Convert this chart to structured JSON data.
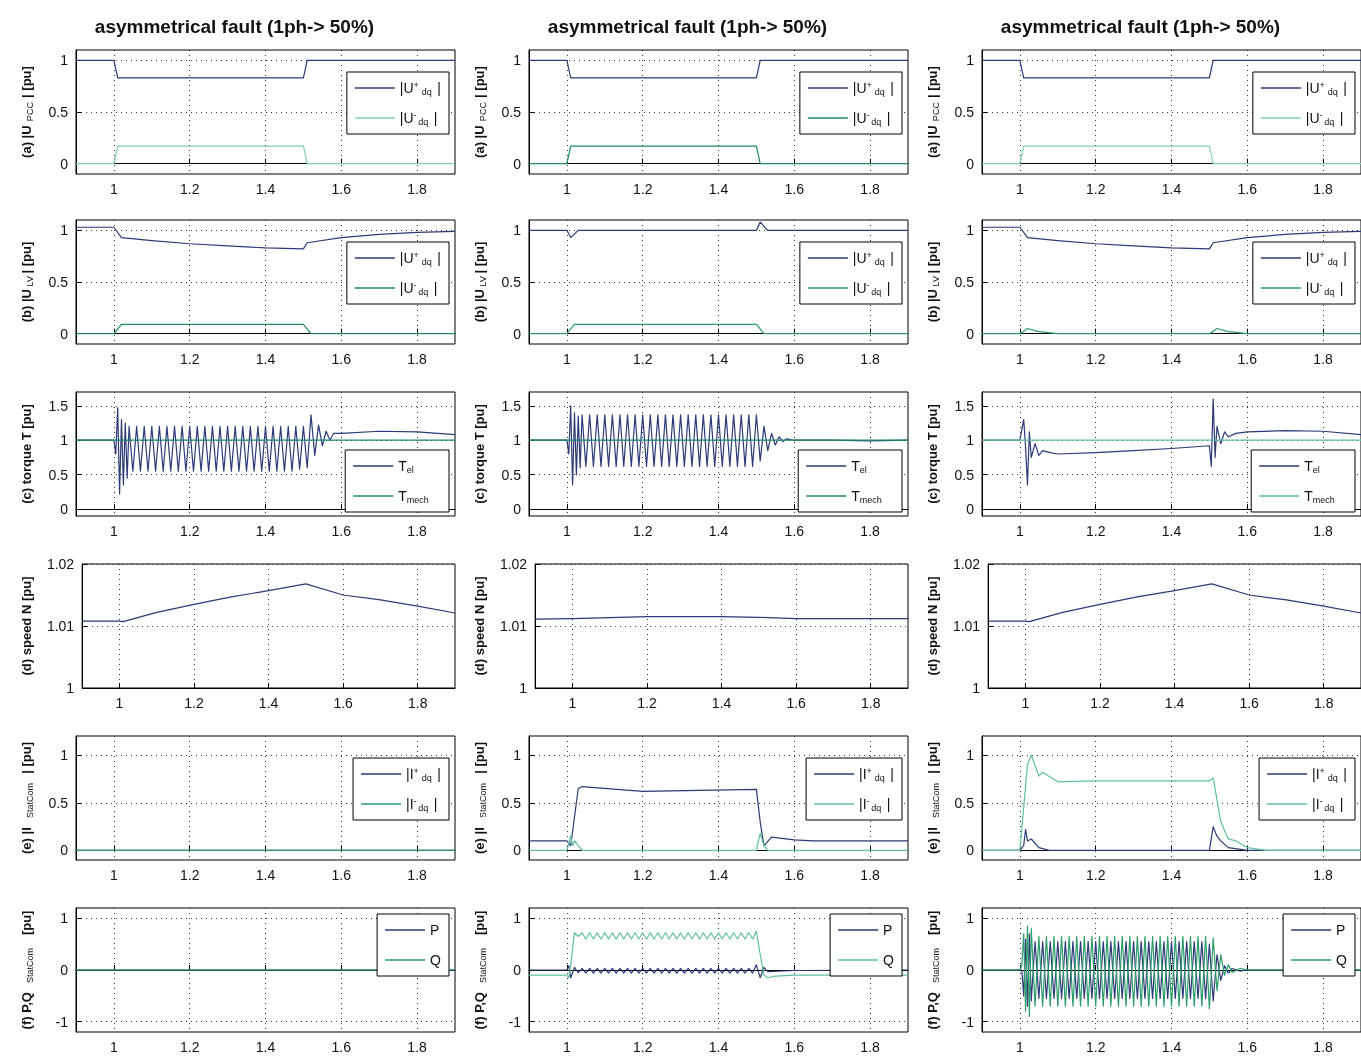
{
  "chart_data": [
    {
      "type": "line",
      "title": "asymmetrical fault (1ph-> 50%)",
      "ylabel": "(a) |U$_{PCC}$| [pu]",
      "xlim": [
        0.9,
        1.9
      ],
      "xticks": [
        1,
        1.2,
        1.4,
        1.6,
        1.8
      ],
      "ylim": [
        -0.1,
        1.1
      ],
      "yticks": [
        0,
        0.5,
        1
      ],
      "grid": true,
      "legend": "right",
      "series": [
        {
          "name": "|U$^{+}$$_{dq}$|",
          "color": "#2c3a78",
          "x": [
            0.9,
            1,
            1.01,
            1.5,
            1.51,
            1.9
          ],
          "values": [
            1,
            1,
            0.83,
            0.83,
            1,
            1
          ]
        },
        {
          "name": "|U$^{-}$$_{dq}$|",
          "color": "#7ed0b4",
          "x": [
            0.9,
            1,
            1.01,
            1.5,
            1.51,
            1.9
          ],
          "values": [
            0,
            0,
            0.17,
            0.17,
            0,
            0
          ]
        }
      ]
    },
    {
      "type": "line",
      "title": "asymmetrical fault (1ph-> 50%)",
      "ylabel": "(a) |U$_{PCC}$| [pu]",
      "xlim": [
        0.9,
        1.9
      ],
      "xticks": [
        1,
        1.2,
        1.4,
        1.6,
        1.8
      ],
      "ylim": [
        -0.1,
        1.1
      ],
      "yticks": [
        0,
        0.5,
        1
      ],
      "grid": true,
      "legend": "right",
      "series": [
        {
          "name": "|U$^{+}$$_{dq}$|",
          "color": "#2c3a78",
          "x": [
            0.9,
            1,
            1.01,
            1.5,
            1.51,
            1.9
          ],
          "values": [
            1,
            1,
            0.83,
            0.83,
            1,
            1
          ]
        },
        {
          "name": "|U$^{-}$$_{dq}$|",
          "color": "#1f8a6a",
          "x": [
            0.9,
            1,
            1.01,
            1.5,
            1.51,
            1.9
          ],
          "values": [
            0,
            0,
            0.17,
            0.17,
            0,
            0
          ]
        }
      ]
    },
    {
      "type": "line",
      "title": "asymmetrical fault (1ph-> 50%)",
      "ylabel": "(a) |U$_{PCC}$| [pu]",
      "xlim": [
        0.9,
        1.9
      ],
      "xticks": [
        1,
        1.2,
        1.4,
        1.6,
        1.8
      ],
      "ylim": [
        -0.1,
        1.1
      ],
      "yticks": [
        0,
        0.5,
        1
      ],
      "grid": true,
      "legend": "right",
      "series": [
        {
          "name": "|U$^{+}$$_{dq}$|",
          "color": "#2c3a78",
          "x": [
            0.9,
            1,
            1.01,
            1.5,
            1.51,
            1.9
          ],
          "values": [
            1,
            1,
            0.83,
            0.83,
            1,
            1
          ]
        },
        {
          "name": "|U$^{-}$$_{dq}$|",
          "color": "#7ed0b4",
          "x": [
            0.9,
            1,
            1.01,
            1.5,
            1.51,
            1.9
          ],
          "values": [
            0,
            0,
            0.17,
            0.17,
            0,
            0
          ]
        }
      ]
    },
    {
      "type": "line",
      "ylabel": "(b) |U$_{LV}$| [pu]",
      "xlim": [
        0.9,
        1.9
      ],
      "xticks": [
        1,
        1.2,
        1.4,
        1.6,
        1.8
      ],
      "ylim": [
        -0.1,
        1.1
      ],
      "yticks": [
        0,
        0.5,
        1
      ],
      "grid": true,
      "legend": "right",
      "series": [
        {
          "name": "|U$^{+}$$_{dq}$|",
          "color": "#2c3a78",
          "x": [
            0.9,
            1,
            1.02,
            1.1,
            1.2,
            1.3,
            1.4,
            1.5,
            1.51,
            1.6,
            1.7,
            1.8,
            1.9
          ],
          "values": [
            1.03,
            1.03,
            0.93,
            0.9,
            0.87,
            0.85,
            0.83,
            0.82,
            0.88,
            0.93,
            0.96,
            0.98,
            0.99
          ]
        },
        {
          "name": "|U$^{-}$$_{dq}$|",
          "color": "#1f8a6a",
          "x": [
            0.9,
            1,
            1.02,
            1.5,
            1.52,
            1.9
          ],
          "values": [
            0,
            0,
            0.09,
            0.09,
            0,
            0
          ]
        }
      ]
    },
    {
      "type": "line",
      "ylabel": "(b) |U$_{LV}$| [pu]",
      "xlim": [
        0.9,
        1.9
      ],
      "xticks": [
        1,
        1.2,
        1.4,
        1.6,
        1.8
      ],
      "ylim": [
        -0.1,
        1.1
      ],
      "yticks": [
        0,
        0.5,
        1
      ],
      "grid": true,
      "legend": "right",
      "series": [
        {
          "name": "|U$^{+}$$_{dq}$|",
          "color": "#2c3a78",
          "x": [
            0.9,
            1,
            1.01,
            1.03,
            1.5,
            1.51,
            1.53,
            1.9
          ],
          "values": [
            1,
            1,
            0.93,
            1,
            1,
            1.08,
            1,
            1
          ]
        },
        {
          "name": "|U$^{-}$$_{dq}$|",
          "color": "#2a9d6a",
          "x": [
            0.9,
            1,
            1.02,
            1.5,
            1.52,
            1.9
          ],
          "values": [
            0,
            0,
            0.09,
            0.09,
            0,
            0
          ]
        }
      ]
    },
    {
      "type": "line",
      "ylabel": "(b) |U$_{LV}$| [pu]",
      "xlim": [
        0.9,
        1.9
      ],
      "xticks": [
        1,
        1.2,
        1.4,
        1.6,
        1.8
      ],
      "ylim": [
        -0.1,
        1.1
      ],
      "yticks": [
        0,
        0.5,
        1
      ],
      "grid": true,
      "legend": "right",
      "series": [
        {
          "name": "|U$^{+}$$_{dq}$|",
          "color": "#2c3a78",
          "x": [
            0.9,
            1,
            1.02,
            1.1,
            1.2,
            1.3,
            1.4,
            1.5,
            1.51,
            1.6,
            1.7,
            1.8,
            1.9
          ],
          "values": [
            1.03,
            1.03,
            0.93,
            0.9,
            0.87,
            0.85,
            0.83,
            0.82,
            0.88,
            0.93,
            0.96,
            0.98,
            0.99
          ]
        },
        {
          "name": "|U$^{-}$$_{dq}$|",
          "color": "#2a9d6a",
          "x": [
            0.9,
            1,
            1.02,
            1.05,
            1.1,
            1.5,
            1.52,
            1.55,
            1.6,
            1.9
          ],
          "values": [
            0,
            0,
            0.05,
            0.02,
            0,
            0,
            0.05,
            0.02,
            0,
            0
          ]
        }
      ]
    },
    {
      "type": "line",
      "ylabel": "(c) torque T [pu]",
      "xlim": [
        0.9,
        1.9
      ],
      "xticks": [
        1,
        1.2,
        1.4,
        1.6,
        1.8
      ],
      "ylim": [
        -0.1,
        1.7
      ],
      "yticks": [
        0,
        0.5,
        1,
        1.5
      ],
      "grid": true,
      "legend": "bottom right",
      "series": [
        {
          "name": "T$_{el}$",
          "color": "#2c3a78",
          "x": [
            0.9,
            1,
            1.005,
            1.01,
            1.015,
            1.02,
            1.025,
            1.03,
            1.035,
            1.04,
            1.05,
            1.06,
            1.07,
            1.08,
            1.09,
            1.1,
            1.11,
            1.12,
            1.13,
            1.14,
            1.15,
            1.16,
            1.17,
            1.18,
            1.19,
            1.2,
            1.21,
            1.22,
            1.23,
            1.24,
            1.25,
            1.26,
            1.27,
            1.28,
            1.29,
            1.3,
            1.31,
            1.32,
            1.33,
            1.34,
            1.35,
            1.36,
            1.37,
            1.38,
            1.39,
            1.4,
            1.41,
            1.42,
            1.43,
            1.44,
            1.45,
            1.46,
            1.47,
            1.48,
            1.49,
            1.5,
            1.51,
            1.52,
            1.53,
            1.54,
            1.55,
            1.56,
            1.57,
            1.58,
            1.6,
            1.7,
            1.8,
            1.9
          ],
          "values": [
            1,
            1,
            0.8,
            1.47,
            0.22,
            1.3,
            0.35,
            1.25,
            0.45,
            1.2,
            0.55,
            1.2,
            0.55,
            1.2,
            0.55,
            1.2,
            0.55,
            1.2,
            0.55,
            1.2,
            0.55,
            1.2,
            0.55,
            1.2,
            0.55,
            1.2,
            0.55,
            1.2,
            0.55,
            1.2,
            0.55,
            1.2,
            0.55,
            1.2,
            0.55,
            1.2,
            0.55,
            1.2,
            0.55,
            1.2,
            0.55,
            1.2,
            0.55,
            1.2,
            0.55,
            1.2,
            0.55,
            1.2,
            0.55,
            1.2,
            0.55,
            1.2,
            0.55,
            1.2,
            0.58,
            1.2,
            0.6,
            1.37,
            0.78,
            1.22,
            0.92,
            1.13,
            1,
            1.1,
            1.1,
            1.13,
            1.12,
            1.08
          ]
        },
        {
          "name": "T$_{mech}$",
          "color": "#1f8a6a",
          "x": [
            0.9,
            1.9
          ],
          "values": [
            1,
            1
          ]
        }
      ]
    },
    {
      "type": "line",
      "ylabel": "(c) torque T [pu]",
      "xlim": [
        0.9,
        1.9
      ],
      "xticks": [
        1,
        1.2,
        1.4,
        1.6,
        1.8
      ],
      "ylim": [
        -0.1,
        1.7
      ],
      "yticks": [
        0,
        0.5,
        1,
        1.5
      ],
      "grid": true,
      "legend": "bottom right",
      "series": [
        {
          "name": "T$_{el}$",
          "color": "#2c3a78",
          "x": [
            0.9,
            1,
            1.005,
            1.01,
            1.015,
            1.02,
            1.025,
            1.03,
            1.035,
            1.04,
            1.05,
            1.06,
            1.07,
            1.08,
            1.09,
            1.1,
            1.11,
            1.12,
            1.13,
            1.14,
            1.15,
            1.16,
            1.17,
            1.18,
            1.19,
            1.2,
            1.21,
            1.22,
            1.23,
            1.24,
            1.25,
            1.26,
            1.27,
            1.28,
            1.29,
            1.3,
            1.31,
            1.32,
            1.33,
            1.34,
            1.35,
            1.36,
            1.37,
            1.38,
            1.39,
            1.4,
            1.41,
            1.42,
            1.43,
            1.44,
            1.45,
            1.46,
            1.47,
            1.48,
            1.49,
            1.5,
            1.51,
            1.52,
            1.53,
            1.54,
            1.55,
            1.56,
            1.57,
            1.58,
            1.6,
            1.7,
            1.8,
            1.9
          ],
          "values": [
            1,
            1,
            0.8,
            1.5,
            0.35,
            1.4,
            0.5,
            1.35,
            0.6,
            1.37,
            0.62,
            1.37,
            0.62,
            1.37,
            0.62,
            1.37,
            0.62,
            1.37,
            0.62,
            1.37,
            0.62,
            1.37,
            0.62,
            1.37,
            0.62,
            1.37,
            0.62,
            1.37,
            0.62,
            1.37,
            0.62,
            1.37,
            0.62,
            1.37,
            0.62,
            1.37,
            0.62,
            1.37,
            0.62,
            1.37,
            0.62,
            1.37,
            0.62,
            1.37,
            0.62,
            1.37,
            0.62,
            1.37,
            0.62,
            1.37,
            0.62,
            1.37,
            0.62,
            1.37,
            0.62,
            1.37,
            0.7,
            1.2,
            0.85,
            1.1,
            0.93,
            1.05,
            0.98,
            1.02,
            1,
            1,
            0.99,
            1
          ]
        },
        {
          "name": "T$_{mech}$",
          "color": "#1f8a6a",
          "x": [
            0.9,
            1.9
          ],
          "values": [
            1,
            1
          ]
        }
      ]
    },
    {
      "type": "line",
      "ylabel": "(c) torque T [pu]",
      "xlim": [
        0.9,
        1.9
      ],
      "xticks": [
        1,
        1.2,
        1.4,
        1.6,
        1.8
      ],
      "ylim": [
        -0.1,
        1.7
      ],
      "yticks": [
        0,
        0.5,
        1,
        1.5
      ],
      "grid": true,
      "legend": "bottom right",
      "series": [
        {
          "name": "T$_{el}$",
          "color": "#2c3a78",
          "x": [
            0.9,
            1,
            1.01,
            1.015,
            1.02,
            1.025,
            1.03,
            1.04,
            1.05,
            1.06,
            1.08,
            1.1,
            1.2,
            1.3,
            1.4,
            1.5,
            1.505,
            1.51,
            1.515,
            1.52,
            1.53,
            1.54,
            1.55,
            1.57,
            1.6,
            1.7,
            1.8,
            1.9
          ],
          "values": [
            1,
            1,
            1.3,
            0.9,
            0.35,
            1.12,
            0.75,
            0.95,
            0.78,
            0.85,
            0.82,
            0.8,
            0.82,
            0.85,
            0.88,
            0.92,
            0.62,
            1.6,
            0.75,
            1.2,
            0.95,
            1.12,
            1.05,
            1.1,
            1.12,
            1.14,
            1.13,
            1.08
          ]
        },
        {
          "name": "T$_{mech}$",
          "color": "#5fbfa0",
          "x": [
            0.9,
            1.9
          ],
          "values": [
            1,
            1
          ]
        }
      ]
    },
    {
      "type": "line",
      "ylabel": "(d) speed N [pu]",
      "xlim": [
        0.9,
        1.9
      ],
      "xticks": [
        1,
        1.2,
        1.4,
        1.6,
        1.8
      ],
      "ylim": [
        1,
        1.02
      ],
      "yticks": [
        1,
        1.01,
        1.02
      ],
      "grid": true,
      "series": [
        {
          "color": "#2c3a78",
          "x": [
            0.9,
            1,
            1.01,
            1.1,
            1.2,
            1.3,
            1.4,
            1.5,
            1.6,
            1.7,
            1.8,
            1.9
          ],
          "values": [
            1.0108,
            1.0108,
            1.0107,
            1.0122,
            1.0135,
            1.0147,
            1.0157,
            1.0168,
            1.015,
            1.0142,
            1.0132,
            1.0121
          ]
        }
      ]
    },
    {
      "type": "line",
      "ylabel": "(d) speed N [pu]",
      "xlim": [
        0.9,
        1.9
      ],
      "xticks": [
        1,
        1.2,
        1.4,
        1.6,
        1.8
      ],
      "ylim": [
        1,
        1.02
      ],
      "yticks": [
        1,
        1.01,
        1.02
      ],
      "grid": true,
      "series": [
        {
          "color": "#2c3a78",
          "x": [
            0.9,
            1,
            1.2,
            1.4,
            1.5,
            1.6,
            1.9
          ],
          "values": [
            1.0111,
            1.0112,
            1.0115,
            1.0115,
            1.0114,
            1.0112,
            1.0112
          ]
        }
      ]
    },
    {
      "type": "line",
      "ylabel": "(d) speed N [pu]",
      "xlim": [
        0.9,
        1.9
      ],
      "xticks": [
        1,
        1.2,
        1.4,
        1.6,
        1.8
      ],
      "ylim": [
        1,
        1.02
      ],
      "yticks": [
        1,
        1.01,
        1.02
      ],
      "grid": true,
      "series": [
        {
          "color": "#2c3a78",
          "x": [
            0.9,
            1,
            1.01,
            1.1,
            1.2,
            1.3,
            1.4,
            1.5,
            1.6,
            1.7,
            1.8,
            1.9
          ],
          "values": [
            1.0108,
            1.0108,
            1.0107,
            1.0122,
            1.0135,
            1.0147,
            1.0157,
            1.0168,
            1.015,
            1.0142,
            1.0132,
            1.0121
          ]
        }
      ]
    },
    {
      "type": "line",
      "ylabel": "(e) |I$_{StatCom}$| [pu]",
      "xlim": [
        0.9,
        1.9
      ],
      "xticks": [
        1,
        1.2,
        1.4,
        1.6,
        1.8
      ],
      "ylim": [
        -0.1,
        1.2
      ],
      "yticks": [
        0,
        0.5,
        1
      ],
      "grid": true,
      "legend": "right",
      "series": [
        {
          "name": "|I$^{+}$$_{dq}$|",
          "color": "#2c3a78",
          "x": [
            0.9,
            1.9
          ],
          "values": [
            0,
            0
          ]
        },
        {
          "name": "|I$^{-}$$_{dq}$|",
          "color": "#2a9d6a",
          "x": [
            0.9,
            1.9
          ],
          "values": [
            0,
            0
          ]
        }
      ]
    },
    {
      "type": "line",
      "ylabel": "(e) |I$_{StatCom}$| [pu]",
      "xlim": [
        0.9,
        1.9
      ],
      "xticks": [
        1,
        1.2,
        1.4,
        1.6,
        1.8
      ],
      "ylim": [
        -0.1,
        1.2
      ],
      "yticks": [
        0,
        0.5,
        1
      ],
      "grid": true,
      "legend": "right",
      "series": [
        {
          "name": "|I$^{+}$$_{dq}$|",
          "color": "#2c3a78",
          "x": [
            0.9,
            1,
            1.01,
            1.03,
            1.04,
            1.2,
            1.5,
            1.51,
            1.52,
            1.54,
            1.6,
            1.65,
            1.9
          ],
          "values": [
            0.1,
            0.1,
            0.05,
            0.65,
            0.67,
            0.62,
            0.64,
            0.3,
            0.05,
            0.14,
            0.11,
            0.1,
            0.1
          ]
        },
        {
          "name": "|I$^{-}$$_{dq}$|",
          "color": "#5fbfa0",
          "x": [
            0.9,
            1,
            1.01,
            1.015,
            1.02,
            1.04,
            1.5,
            1.51,
            1.52,
            1.53,
            1.9
          ],
          "values": [
            0,
            0,
            0.15,
            0.05,
            0.1,
            0,
            0,
            0.18,
            0.05,
            0,
            0
          ]
        }
      ]
    },
    {
      "type": "line",
      "ylabel": "(e) |I$_{StatCom}$| [pu]",
      "xlim": [
        0.9,
        1.9
      ],
      "xticks": [
        1,
        1.2,
        1.4,
        1.6,
        1.8
      ],
      "ylim": [
        -0.1,
        1.2
      ],
      "yticks": [
        0,
        0.5,
        1
      ],
      "grid": true,
      "legend": "right",
      "series": [
        {
          "name": "|I$^{+}$$_{dq}$|",
          "color": "#2c3a78",
          "x": [
            0.9,
            1,
            1.01,
            1.015,
            1.02,
            1.03,
            1.05,
            1.08,
            1.5,
            1.51,
            1.52,
            1.53,
            1.55,
            1.6,
            1.9
          ],
          "values": [
            0,
            0,
            0.05,
            0.22,
            0.1,
            0.12,
            0.03,
            0,
            0,
            0.25,
            0.15,
            0.1,
            0.03,
            0,
            0
          ]
        },
        {
          "name": "|I$^{-}$$_{dq}$|",
          "color": "#5fbfa0",
          "x": [
            0.9,
            1,
            1.02,
            1.03,
            1.05,
            1.06,
            1.1,
            1.2,
            1.5,
            1.51,
            1.53,
            1.55,
            1.57,
            1.6,
            1.65,
            1.9
          ],
          "values": [
            0,
            0,
            0.9,
            1,
            0.78,
            0.82,
            0.72,
            0.73,
            0.73,
            0.76,
            0.3,
            0.12,
            0.1,
            0.03,
            0,
            0
          ]
        }
      ]
    },
    {
      "type": "line",
      "ylabel": "(f) P,Q$_{StatCom}$ [pu]",
      "xlim": [
        0.9,
        1.9
      ],
      "xticks": [
        1,
        1.2,
        1.4,
        1.6,
        1.8
      ],
      "ylim": [
        -1.2,
        1.2
      ],
      "yticks": [
        -1,
        0,
        1
      ],
      "grid": true,
      "legend": "top right",
      "series": [
        {
          "name": "P",
          "color": "#2c3a78",
          "x": [
            0.9,
            1.9
          ],
          "values": [
            0,
            0
          ]
        },
        {
          "name": "Q",
          "color": "#2a9d6a",
          "x": [
            0.9,
            1.9
          ],
          "values": [
            0,
            0
          ]
        }
      ]
    },
    {
      "type": "line",
      "ylabel": "(f) P,Q$_{StatCom}$ [pu]",
      "xlim": [
        0.9,
        1.9
      ],
      "xticks": [
        1,
        1.2,
        1.4,
        1.6,
        1.8
      ],
      "ylim": [
        -1.2,
        1.2
      ],
      "yticks": [
        -1,
        0,
        1
      ],
      "grid": true,
      "legend": "top right",
      "series": [
        {
          "name": "P",
          "color": "#2c3a78",
          "x": [
            0.9,
            1,
            1.005,
            1.01,
            1.02,
            1.03,
            1.04,
            1.05,
            1.06,
            1.07,
            1.08,
            1.09,
            1.1,
            1.11,
            1.12,
            1.13,
            1.14,
            1.15,
            1.16,
            1.17,
            1.18,
            1.19,
            1.2,
            1.21,
            1.22,
            1.23,
            1.24,
            1.25,
            1.26,
            1.27,
            1.28,
            1.29,
            1.3,
            1.31,
            1.32,
            1.33,
            1.34,
            1.35,
            1.36,
            1.37,
            1.38,
            1.39,
            1.4,
            1.41,
            1.42,
            1.43,
            1.44,
            1.45,
            1.46,
            1.47,
            1.48,
            1.49,
            1.5,
            1.51,
            1.52,
            1.53,
            1.6,
            1.9
          ],
          "values": [
            0,
            0,
            0.08,
            -0.15,
            0.05,
            -0.05,
            0.03,
            -0.06,
            0.03,
            -0.06,
            0.03,
            -0.06,
            0.03,
            -0.06,
            0.03,
            -0.06,
            0.03,
            -0.06,
            0.03,
            -0.06,
            0.03,
            -0.06,
            0.03,
            -0.06,
            0.03,
            -0.06,
            0.03,
            -0.06,
            0.03,
            -0.06,
            0.03,
            -0.06,
            0.03,
            -0.06,
            0.03,
            -0.06,
            0.03,
            -0.06,
            0.03,
            -0.06,
            0.03,
            -0.06,
            0.03,
            -0.06,
            0.03,
            -0.06,
            0.03,
            -0.06,
            0.03,
            -0.06,
            0.03,
            -0.06,
            0.1,
            -0.15,
            0.05,
            -0.03,
            -0.01,
            0
          ]
        },
        {
          "name": "Q",
          "color": "#5fbfa0",
          "x": [
            0.9,
            1,
            1.005,
            1.01,
            1.02,
            1.03,
            1.04,
            1.05,
            1.06,
            1.07,
            1.08,
            1.09,
            1.1,
            1.11,
            1.12,
            1.13,
            1.14,
            1.15,
            1.16,
            1.17,
            1.18,
            1.19,
            1.2,
            1.21,
            1.22,
            1.23,
            1.24,
            1.25,
            1.26,
            1.27,
            1.28,
            1.29,
            1.3,
            1.31,
            1.32,
            1.33,
            1.34,
            1.35,
            1.36,
            1.37,
            1.38,
            1.39,
            1.4,
            1.41,
            1.42,
            1.43,
            1.44,
            1.45,
            1.46,
            1.47,
            1.48,
            1.49,
            1.5,
            1.51,
            1.52,
            1.53,
            1.55,
            1.6,
            1.9
          ],
          "values": [
            -0.1,
            -0.1,
            -0.15,
            0.1,
            0.72,
            0.65,
            0.72,
            0.6,
            0.72,
            0.6,
            0.72,
            0.6,
            0.72,
            0.6,
            0.72,
            0.6,
            0.72,
            0.6,
            0.72,
            0.6,
            0.72,
            0.6,
            0.72,
            0.6,
            0.72,
            0.6,
            0.72,
            0.6,
            0.72,
            0.6,
            0.72,
            0.6,
            0.72,
            0.6,
            0.72,
            0.6,
            0.72,
            0.6,
            0.72,
            0.6,
            0.72,
            0.6,
            0.72,
            0.6,
            0.72,
            0.6,
            0.72,
            0.6,
            0.72,
            0.6,
            0.72,
            0.6,
            0.75,
            0.3,
            -0.1,
            -0.15,
            -0.12,
            -0.1,
            -0.1
          ]
        }
      ]
    },
    {
      "type": "line",
      "ylabel": "(f) P,Q$_{StatCom}$ [pu]",
      "xlim": [
        0.9,
        1.9
      ],
      "xticks": [
        1,
        1.2,
        1.4,
        1.6,
        1.8
      ],
      "ylim": [
        -1.2,
        1.2
      ],
      "yticks": [
        -1,
        0,
        1
      ],
      "grid": true,
      "legend": "top right",
      "series": [
        {
          "name": "P",
          "color": "#2c3a78",
          "x": [
            0.9,
            1,
            1.005,
            1.01,
            1.015,
            1.02,
            1.025,
            1.03,
            1.04,
            1.05,
            1.06,
            1.07,
            1.08,
            1.09,
            1.1,
            1.11,
            1.12,
            1.13,
            1.14,
            1.15,
            1.16,
            1.17,
            1.18,
            1.19,
            1.2,
            1.21,
            1.22,
            1.23,
            1.24,
            1.25,
            1.26,
            1.27,
            1.28,
            1.29,
            1.3,
            1.31,
            1.32,
            1.33,
            1.34,
            1.35,
            1.36,
            1.37,
            1.38,
            1.39,
            1.4,
            1.41,
            1.42,
            1.43,
            1.44,
            1.45,
            1.46,
            1.47,
            1.48,
            1.49,
            1.5,
            1.51,
            1.52,
            1.53,
            1.54,
            1.55,
            1.56,
            1.58,
            1.6,
            1.9
          ],
          "values": [
            0,
            0,
            0,
            -0.5,
            0.6,
            -0.7,
            0.7,
            -0.6,
            0.55,
            -0.55,
            0.55,
            -0.55,
            0.55,
            -0.55,
            0.55,
            -0.55,
            0.55,
            -0.55,
            0.55,
            -0.55,
            0.55,
            -0.55,
            0.55,
            -0.55,
            0.55,
            -0.55,
            0.55,
            -0.55,
            0.55,
            -0.55,
            0.55,
            -0.55,
            0.55,
            -0.55,
            0.55,
            -0.55,
            0.55,
            -0.55,
            0.55,
            -0.55,
            0.55,
            -0.55,
            0.55,
            -0.55,
            0.55,
            -0.55,
            0.55,
            -0.55,
            0.55,
            -0.55,
            0.55,
            -0.55,
            0.55,
            -0.55,
            0.5,
            -0.6,
            0.3,
            -0.2,
            0.08,
            -0.06,
            0.03,
            -0.02,
            0,
            0
          ]
        },
        {
          "name": "Q",
          "color": "#2a9d6a",
          "x": [
            0.9,
            1,
            1.005,
            1.01,
            1.015,
            1.02,
            1.025,
            1.03,
            1.04,
            1.05,
            1.06,
            1.07,
            1.08,
            1.09,
            1.1,
            1.11,
            1.12,
            1.13,
            1.14,
            1.15,
            1.16,
            1.17,
            1.18,
            1.19,
            1.2,
            1.21,
            1.22,
            1.23,
            1.24,
            1.25,
            1.26,
            1.27,
            1.28,
            1.29,
            1.3,
            1.31,
            1.32,
            1.33,
            1.34,
            1.35,
            1.36,
            1.37,
            1.38,
            1.39,
            1.4,
            1.41,
            1.42,
            1.43,
            1.44,
            1.45,
            1.46,
            1.47,
            1.48,
            1.49,
            1.5,
            1.51,
            1.52,
            1.53,
            1.54,
            1.55,
            1.56,
            1.58,
            1.6,
            1.9
          ],
          "values": [
            0,
            0,
            0.1,
            0.7,
            -0.8,
            0.85,
            -0.9,
            0.8,
            -0.7,
            0.65,
            -0.7,
            0.65,
            -0.7,
            0.65,
            -0.7,
            0.65,
            -0.7,
            0.65,
            -0.7,
            0.65,
            -0.7,
            0.65,
            -0.7,
            0.65,
            -0.7,
            0.65,
            -0.7,
            0.65,
            -0.7,
            0.65,
            -0.7,
            0.65,
            -0.7,
            0.65,
            -0.7,
            0.65,
            -0.7,
            0.65,
            -0.7,
            0.65,
            -0.7,
            0.65,
            -0.7,
            0.65,
            -0.7,
            0.65,
            -0.7,
            0.65,
            -0.7,
            0.65,
            -0.7,
            0.65,
            -0.7,
            0.65,
            -0.75,
            0.62,
            -0.4,
            0.3,
            -0.1,
            0.1,
            -0.05,
            0.03,
            0,
            0
          ]
        }
      ]
    }
  ]
}
